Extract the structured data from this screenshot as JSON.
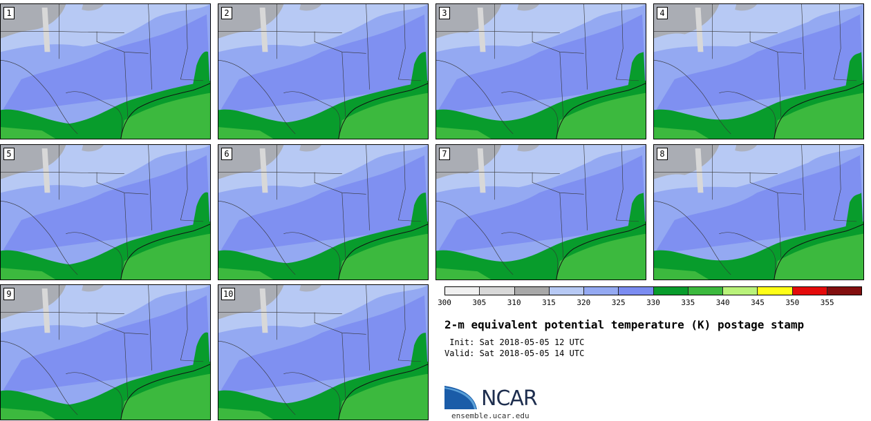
{
  "stamps": [
    {
      "label": "1"
    },
    {
      "label": "2"
    },
    {
      "label": "3"
    },
    {
      "label": "4"
    },
    {
      "label": "5"
    },
    {
      "label": "6"
    },
    {
      "label": "7"
    },
    {
      "label": "8"
    },
    {
      "label": "9"
    },
    {
      "label": "10"
    }
  ],
  "colorbar": {
    "ticks": [
      "300",
      "305",
      "310",
      "315",
      "320",
      "325",
      "330",
      "335",
      "340",
      "345",
      "350",
      "355"
    ],
    "colors": [
      "#f0f0f0",
      "#d8d8d8",
      "#a8a8a8",
      "#b7c9f4",
      "#94a9f2",
      "#7b8cf1",
      "#089c2c",
      "#3cb93e",
      "#b9f27a",
      "#fefe18",
      "#e40b0b",
      "#820f0f"
    ]
  },
  "title": "2-m equivalent potential temperature (K) postage stamp",
  "init": " Init: Sat 2018-05-05 12 UTC",
  "valid": "Valid: Sat 2018-05-05 14 UTC",
  "logo": {
    "text": "NCAR",
    "url": "ensemble.ucar.edu",
    "colors": {
      "wave_dark": "#1a5ca8",
      "wave_light": "#5aa0d8",
      "text": "#1e2e4e"
    }
  },
  "map_colors": {
    "gray": "#a8a8a8",
    "lightgray": "#d8d8d8",
    "light_blue": "#b7c9f4",
    "mid_blue": "#94a9f2",
    "blue": "#7b8cf1",
    "dark_green": "#089c2c",
    "green": "#3cb93e"
  }
}
